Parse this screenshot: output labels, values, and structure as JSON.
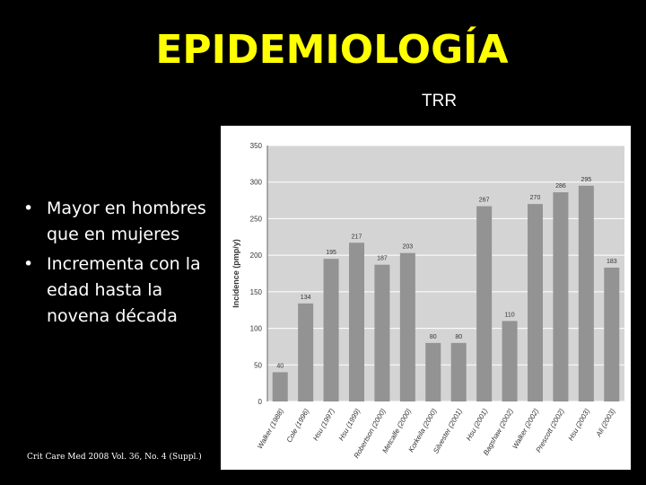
{
  "slide": {
    "title": "EPIDEMIOLOGÍA",
    "subtitle": "TRR",
    "bullets": [
      {
        "bullet": "•",
        "text": "Mayor en hombres que en mujeres"
      },
      {
        "bullet": "•",
        "text": "Incrementa con la edad hasta la novena década"
      }
    ],
    "citation": "Crit Care Med 2008 Vol. 36, No. 4 (Suppl.)"
  },
  "colors": {
    "title": "#FFFF00",
    "background": "#000000",
    "plot_background": "#D4D4D4",
    "bar": "#939393",
    "grid": "#FFFFFF"
  },
  "chart_data": {
    "type": "bar",
    "categories": [
      "Walker (1988)",
      "Cole (1996)",
      "Hsu (1997)",
      "Hsu (1999)",
      "Robertson (2000)",
      "Metcalfe (2000)",
      "Korkeila (2000)",
      "Silvester (2001)",
      "Hsu (2001)",
      "Bagshaw (2002)",
      "Walker (2002)",
      "Prescott (2002)",
      "Hsu (2003)",
      "Ali (2003)"
    ],
    "values": [
      40,
      134,
      195,
      217,
      187,
      203,
      80,
      80,
      267,
      110,
      270,
      286,
      295,
      183
    ],
    "ylabel": "Incidence (pmp/y)",
    "ylim": [
      0,
      350
    ],
    "yticks": [
      0,
      50,
      100,
      150,
      200,
      250,
      300,
      350
    ],
    "grid": true
  }
}
